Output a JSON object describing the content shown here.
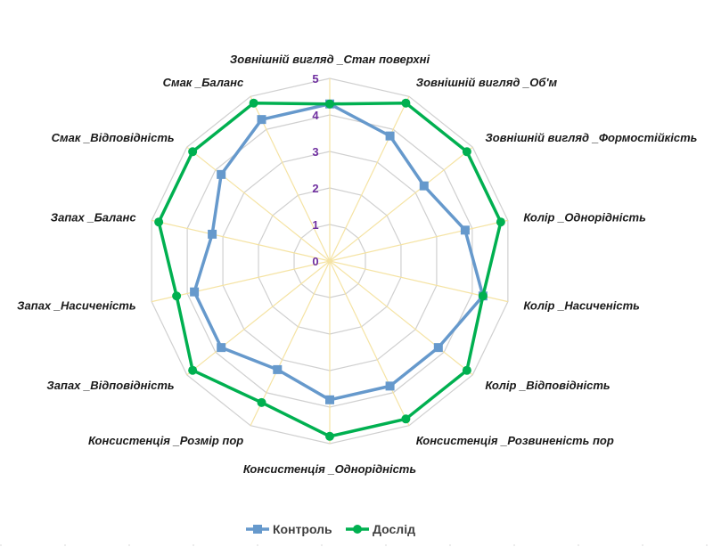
{
  "chart_data": {
    "type": "radar",
    "axes": [
      "Зовнішній вигляд _Стан поверхні",
      "Зовнішній вигляд _Об'м",
      "Зовнішній вигляд _Формостійкість",
      "Колір _Однорідність",
      "Колір _Насиченість",
      "Колір _Відповідність",
      "Консистенція _Розвиненість пор",
      "Консистенція _Однорідність",
      "Консистенція _Розмір пор",
      "Запах _Відповідність",
      "Запах _Насиченість",
      "Запах _Баланс",
      "Смак _Відповідність",
      "Смак _Баланс"
    ],
    "ticks": [
      "0",
      "1",
      "2",
      "3",
      "4",
      "5"
    ],
    "rlim": [
      0,
      5
    ],
    "grid": true,
    "legend_position": "bottom",
    "series": [
      {
        "name": "Контроль",
        "color": "#6699cc",
        "marker": "square",
        "values": [
          4.3,
          3.8,
          3.3,
          3.8,
          4.3,
          3.8,
          3.8,
          3.8,
          3.3,
          3.8,
          3.8,
          3.3,
          3.8,
          4.3
        ]
      },
      {
        "name": "Дослід",
        "color": "#00b050",
        "marker": "circle",
        "values": [
          4.3,
          4.8,
          4.8,
          4.8,
          4.3,
          4.8,
          4.8,
          4.8,
          4.3,
          4.8,
          4.3,
          4.8,
          4.8,
          4.8
        ]
      }
    ]
  }
}
